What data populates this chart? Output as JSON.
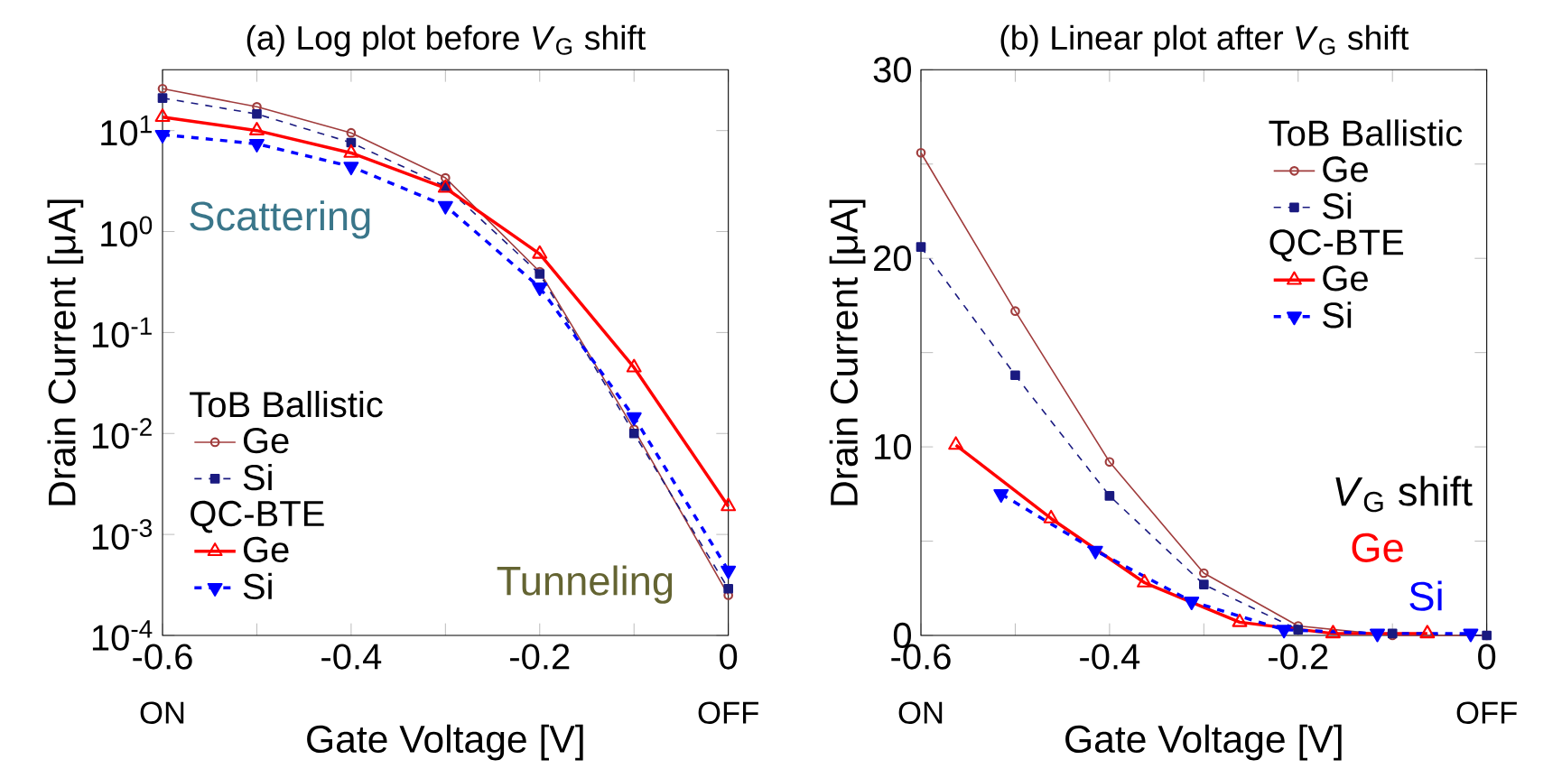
{
  "chart_data": [
    {
      "type": "line",
      "title": "(a) Log plot before *V*$_{G}$ shift",
      "xlabel": "Gate Voltage [V]",
      "ylabel": "Drain Current [μA]",
      "log": "y",
      "legend": "bottom left",
      "xlim": [
        -0.6,
        0
      ],
      "ylim": [
        0.0001,
        40
      ],
      "xticks": [
        -0.6,
        {
          "value": -0.5,
          "label": null
        },
        -0.4,
        {
          "value": -0.3,
          "label": null
        },
        -0.2,
        {
          "value": -0.1,
          "label": null
        },
        0
      ],
      "yticks": [
        {
          "value": 0.0001,
          "label": "10$^{-4}$"
        },
        {
          "value": 0.001,
          "label": "10$^{-3}$"
        },
        {
          "value": 0.01,
          "label": "10$^{-2}$"
        },
        {
          "value": 0.1,
          "label": "10$^{-1}$"
        },
        {
          "value": 1,
          "label": "10$^{0}$"
        },
        {
          "value": 10,
          "label": "10$^{1}$"
        }
      ],
      "x": [
        -0.6,
        -0.5,
        -0.4,
        -0.3,
        -0.2,
        -0.1,
        0
      ],
      "series": [
        {
          "name": "Ge",
          "color": "#a03c3c",
          "marker": "circle",
          "line_style": "solid",
          "values": [
            26,
            17.2,
            9.5,
            3.4,
            0.4,
            0.011,
            0.00025
          ]
        },
        {
          "name": "Si",
          "color": "#1a1a80",
          "marker": "square",
          "line_style": "dashed",
          "values": [
            21,
            14.6,
            7.6,
            2.8,
            0.38,
            0.01,
            0.00029
          ]
        },
        {
          "name": "Ge",
          "color": "#ff0000",
          "marker": "triangle",
          "line_style": "solid",
          "values": [
            13.6,
            10,
            6.0,
            2.7,
            0.6,
            0.045,
            0.0019
          ]
        },
        {
          "name": "Si",
          "color": "#0000ff",
          "marker": "triangle-down",
          "line_style": "dashed",
          "values": [
            9.1,
            7.4,
            4.4,
            1.8,
            0.28,
            0.0145,
            0.00044
          ]
        }
      ],
      "annotations": [
        "ToB Ballistic",
        "QC-BTE",
        "ON",
        "OFF",
        "Scattering",
        "Tunneling"
      ]
    },
    {
      "type": "line",
      "title": "(b) Linear plot after *V*$_{G}$ shift",
      "xlabel": "Gate Voltage [V]",
      "ylabel": "Drain Current [μA]",
      "legend": "top right",
      "xlim": [
        -0.6,
        0
      ],
      "ylim": [
        0,
        30
      ],
      "xticks": [
        -0.6,
        {
          "value": -0.5,
          "label": null
        },
        -0.4,
        {
          "value": -0.3,
          "label": null
        },
        -0.2,
        {
          "value": -0.1,
          "label": null
        },
        0
      ],
      "yticks": [
        0,
        {
          "value": 5,
          "label": null
        },
        10,
        {
          "value": 15,
          "label": null
        },
        20,
        {
          "value": 25,
          "label": null
        },
        30
      ],
      "series": [
        {
          "name": "Ge",
          "color": "#a03c3c",
          "marker": "circle",
          "line_style": "solid",
          "x": [
            -0.6,
            -0.5,
            -0.4,
            -0.3,
            -0.2,
            -0.1,
            0
          ],
          "values": [
            25.6,
            17.2,
            9.2,
            3.3,
            0.5,
            0,
            0
          ]
        },
        {
          "name": "Si",
          "color": "#1a1a80",
          "marker": "square",
          "line_style": "dashed",
          "x": [
            -0.6,
            -0.5,
            -0.4,
            -0.3,
            -0.2,
            -0.1,
            0
          ],
          "values": [
            20.6,
            13.8,
            7.4,
            2.7,
            0.3,
            0.1,
            0
          ]
        },
        {
          "name": "Ge",
          "color": "#ff0000",
          "marker": "triangle",
          "line_style": "solid",
          "x": [
            -0.563,
            -0.462,
            -0.363,
            -0.262,
            -0.163,
            -0.063
          ],
          "values": [
            10.1,
            6.2,
            2.8,
            0.7,
            0.1,
            0.1
          ]
        },
        {
          "name": "Si",
          "color": "#0000ff",
          "marker": "triangle-down",
          "line_style": "dashed",
          "x": [
            -0.515,
            -0.415,
            -0.313,
            -0.215,
            -0.116,
            -0.017
          ],
          "values": [
            7.5,
            4.5,
            1.8,
            0.3,
            0.1,
            0.1
          ]
        }
      ],
      "annotations": [
        "ToB Ballistic",
        "QC-BTE",
        "ON",
        "OFF",
        "*V*$_{G}$ shift",
        "Ge",
        "Si"
      ]
    }
  ]
}
